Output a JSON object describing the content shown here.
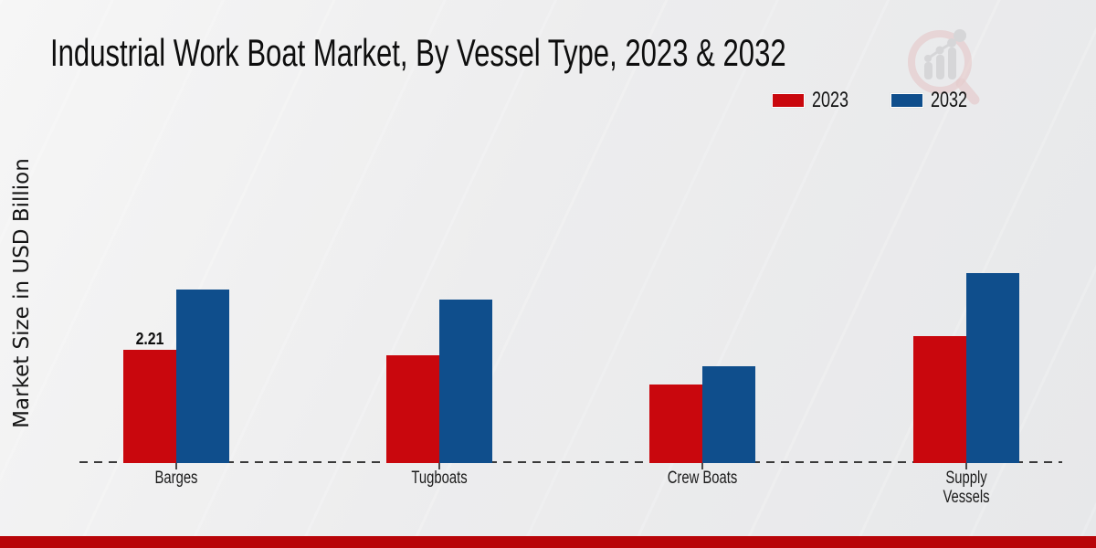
{
  "header": {
    "title": "Industrial Work Boat Market, By Vessel Type, 2023 & 2032"
  },
  "y_axis": {
    "label": "Market Size in USD Billion"
  },
  "legend": {
    "items": [
      {
        "label": "2023",
        "color": "#c9070d"
      },
      {
        "label": "2032",
        "color": "#0f4e8c"
      }
    ]
  },
  "watermark": {
    "icon": "magnifier-bar-chart-logo",
    "ring_color": "#e2b6b6",
    "bars_color": "#c6c6c9"
  },
  "footer": {
    "color": "#b80509"
  },
  "chart_data": {
    "type": "bar",
    "title": "Industrial Work Boat Market, By Vessel Type, 2023 & 2032",
    "xlabel": "",
    "ylabel": "Market Size in USD Billion",
    "categories": [
      "Barges",
      "Tugboats",
      "Crew Boats",
      "Supply Vessels"
    ],
    "category_labels": [
      "Barges",
      "Tugboats",
      "Crew Boats",
      "Supply\nVessels"
    ],
    "series": [
      {
        "name": "2023",
        "color": "#c9070d",
        "values": [
          2.21,
          2.1,
          1.53,
          2.48
        ]
      },
      {
        "name": "2032",
        "color": "#0f4e8c",
        "values": [
          3.39,
          3.19,
          1.89,
          3.71
        ]
      }
    ],
    "data_labels": [
      {
        "series": "2023",
        "category": "Barges",
        "text": "2.21"
      }
    ],
    "ylim": [
      0,
      4
    ],
    "grid": false,
    "axis_style": "dashed-baseline-only",
    "legend_position": "top-right"
  }
}
